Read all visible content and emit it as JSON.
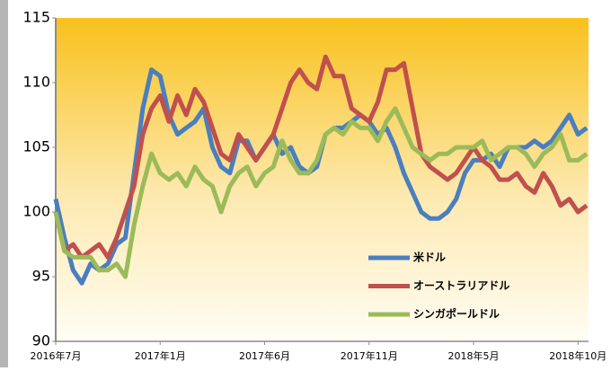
{
  "chart_data": {
    "type": "line",
    "categories": [
      "2016年7月",
      null,
      null,
      null,
      null,
      null,
      null,
      null,
      null,
      null,
      null,
      null,
      "2017年1月",
      null,
      null,
      null,
      null,
      null,
      null,
      null,
      null,
      null,
      null,
      null,
      "2017年6月",
      null,
      null,
      null,
      null,
      null,
      null,
      null,
      null,
      null,
      null,
      null,
      "2017年11月",
      null,
      null,
      null,
      null,
      null,
      null,
      null,
      null,
      null,
      null,
      null,
      "2018年5月",
      null,
      null,
      null,
      null,
      null,
      null,
      null,
      null,
      null,
      null,
      null,
      "2018年10月",
      null
    ],
    "series": [
      {
        "name": "米ドル",
        "color": "#4a7ebf",
        "values": [
          101,
          98,
          95.5,
          94.5,
          96,
          95.5,
          96,
          97.5,
          98,
          103,
          108,
          111,
          110.5,
          107.5,
          106,
          106.5,
          107,
          108,
          105,
          103.5,
          103,
          105.5,
          105.5,
          104,
          105,
          106,
          104.5,
          105,
          103.5,
          103,
          103.5,
          106,
          106.5,
          106.5,
          107,
          107.5,
          107,
          106,
          106.5,
          105,
          103,
          101.5,
          100,
          99.5,
          99.5,
          100,
          101,
          103,
          104,
          104,
          104.5,
          103.5,
          105,
          105,
          105,
          105.5,
          105,
          105.5,
          106.5,
          107.5,
          106,
          106.5
        ]
      },
      {
        "name": "オーストラリアドル",
        "color": "#c0504d",
        "values": [
          100,
          97,
          97.5,
          96.5,
          97,
          97.5,
          96.5,
          98,
          100,
          102,
          106,
          108,
          109,
          107,
          109,
          107.5,
          109.5,
          108.5,
          106.5,
          104.5,
          104,
          106,
          105,
          104,
          105,
          106,
          108,
          110,
          111,
          110,
          109.5,
          112,
          110.5,
          110.5,
          108,
          107.5,
          107,
          108.5,
          111,
          111,
          111.5,
          108,
          104.5,
          103.5,
          103,
          102.5,
          103,
          104,
          105,
          104,
          103.5,
          102.5,
          102.5,
          103,
          102,
          101.5,
          103,
          102,
          100.5,
          101,
          100,
          100.5
        ]
      },
      {
        "name": "シンガポールドル",
        "color": "#9bbb59",
        "values": [
          100,
          97,
          96.5,
          96.5,
          96.5,
          95.5,
          95.5,
          96,
          95,
          99,
          102,
          104.5,
          103,
          102.5,
          103,
          102,
          103.5,
          102.5,
          102,
          100,
          102,
          103,
          103.5,
          102,
          103,
          103.5,
          105.5,
          104,
          103,
          103,
          104,
          106,
          106.5,
          106,
          107,
          106.5,
          106.5,
          105.5,
          107,
          108,
          106.5,
          105,
          104.5,
          104,
          104.5,
          104.5,
          105,
          105,
          105,
          105.5,
          104,
          104.5,
          105,
          105,
          104.5,
          103.5,
          104.5,
          105,
          106,
          104,
          104,
          104.5
        ]
      }
    ],
    "ylim": [
      90,
      115
    ],
    "yticks": [
      90,
      95,
      100,
      105,
      110,
      115
    ]
  }
}
